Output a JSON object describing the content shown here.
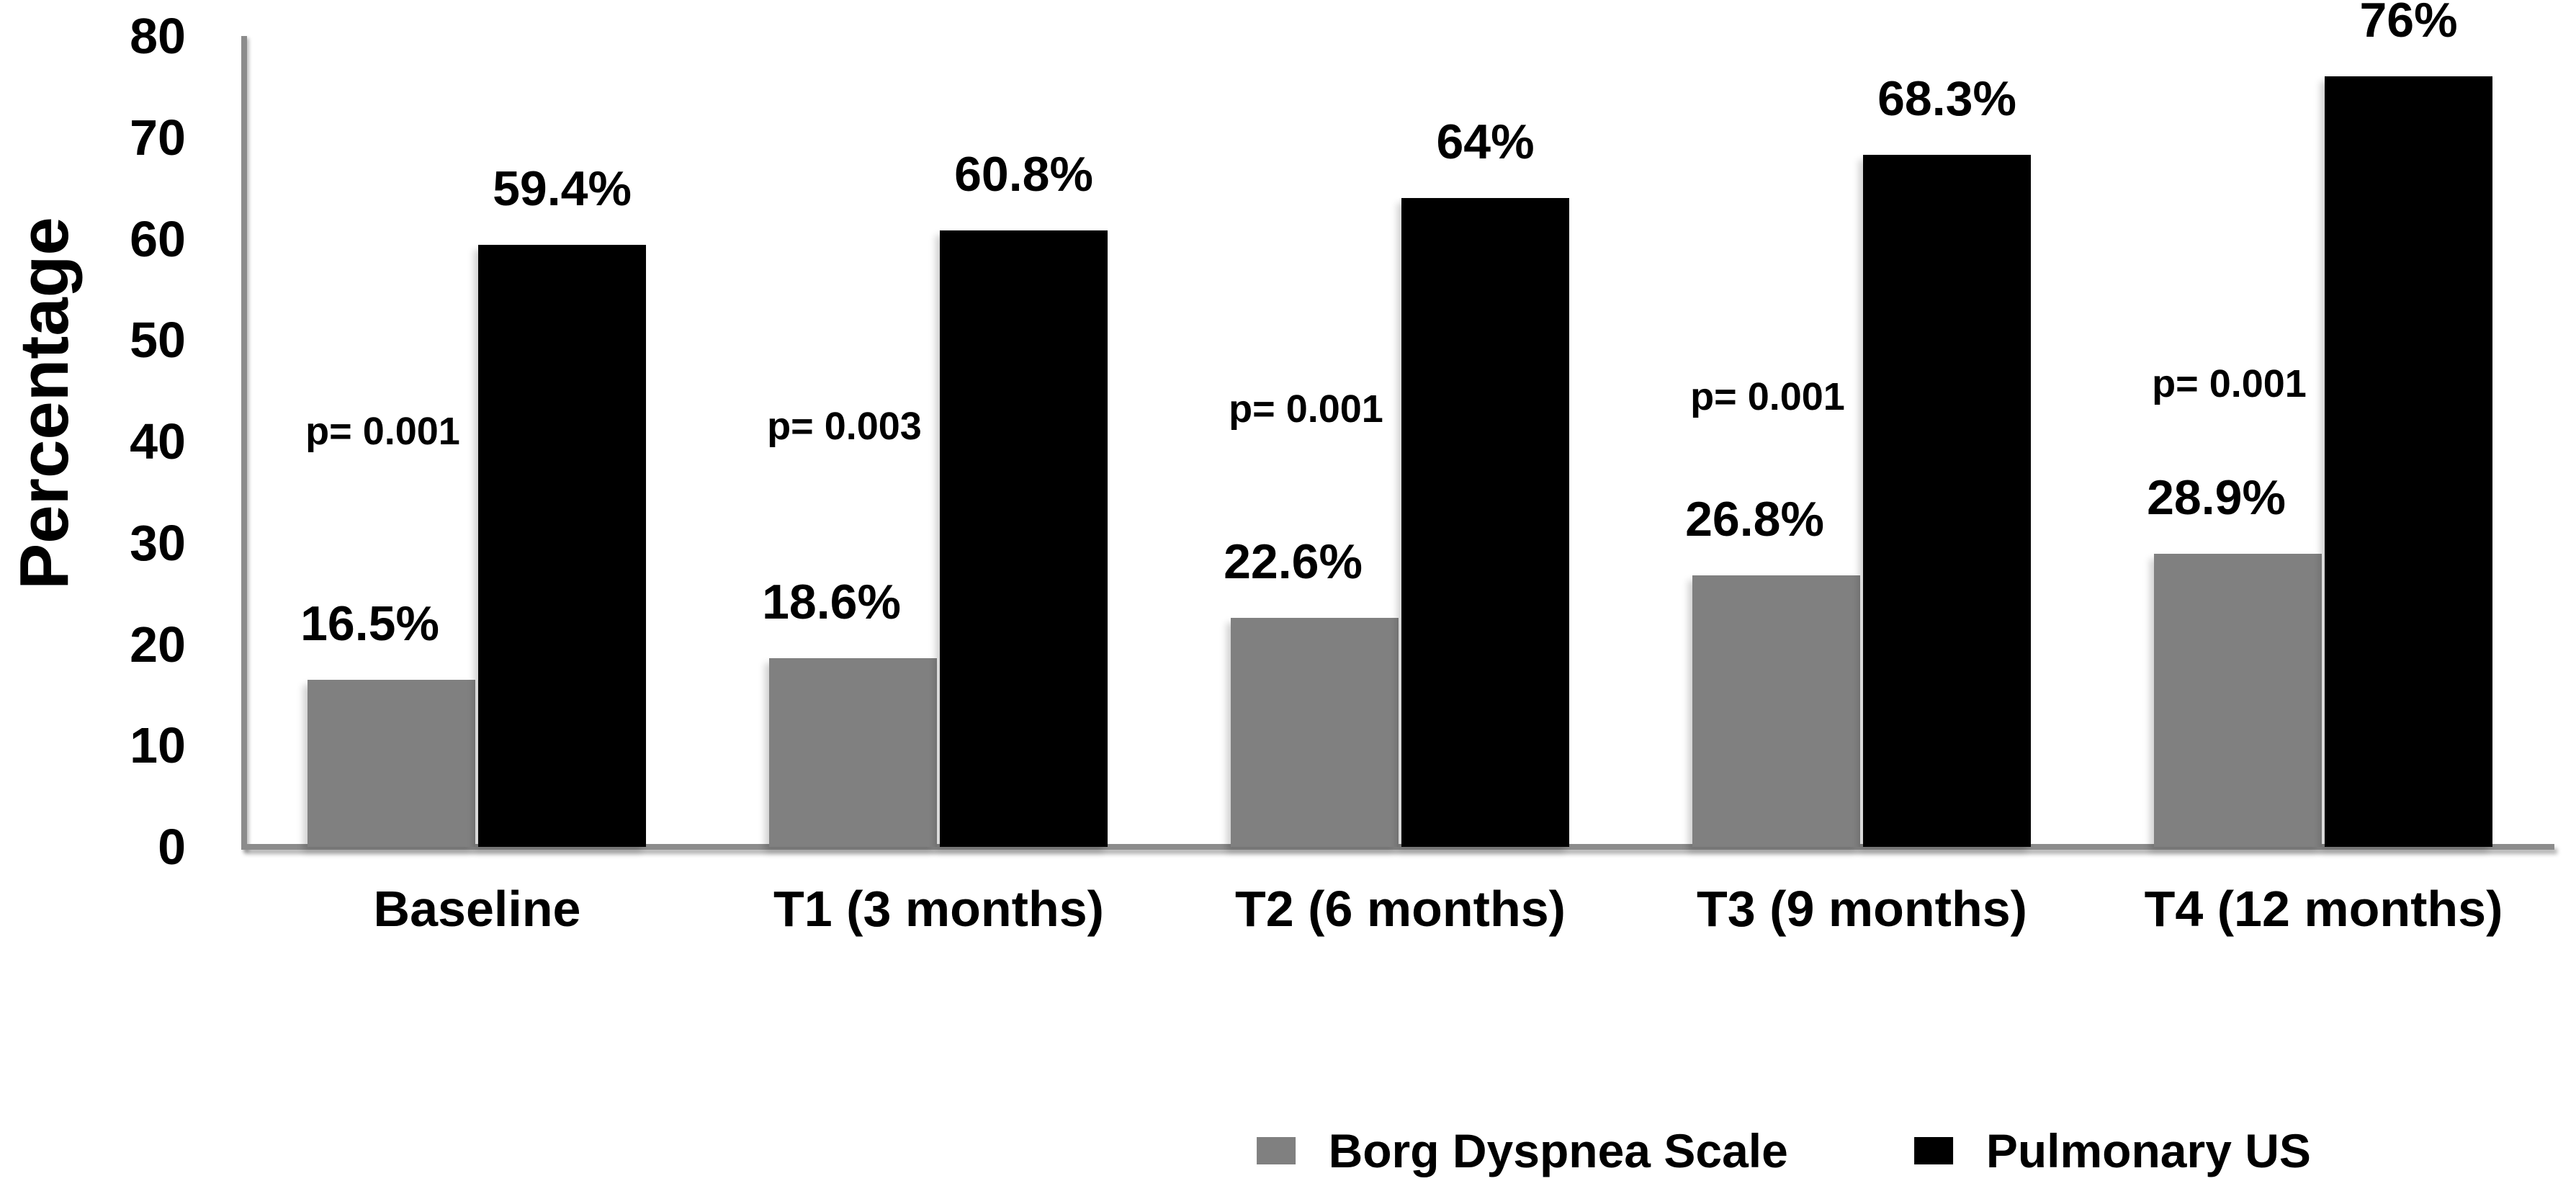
{
  "chart_data": {
    "type": "bar",
    "ylabel": "Percentage",
    "ylim": [
      0,
      80
    ],
    "yticks": [
      0,
      10,
      20,
      30,
      40,
      50,
      60,
      70,
      80
    ],
    "grid": false,
    "legend_position": "bottom",
    "background": "#ffffff",
    "axis_color": "#8c8c8c",
    "text_color": "#000000",
    "categories": [
      "Baseline",
      "T1 (3 months)",
      "T2 (6 months)",
      "T3 (9 months)",
      "T4 (12 months)"
    ],
    "series": [
      {
        "name": "Borg Dyspnea Scale",
        "color": "#808080",
        "values": [
          16.5,
          18.6,
          22.6,
          26.8,
          28.9
        ],
        "labels": [
          "16.5%",
          "18.6%",
          "22.6%",
          "26.8%",
          "28.9%"
        ]
      },
      {
        "name": "Pulmonary  US",
        "color": "#000000",
        "values": [
          59.4,
          60.8,
          64,
          68.3,
          76
        ],
        "labels": [
          "59.4%",
          "60.8%",
          "64%",
          "68.3%",
          "76%"
        ]
      }
    ],
    "annotations": [
      {
        "text": "p= 0.001",
        "group": 0,
        "y_value": 41.0
      },
      {
        "text": "p= 0.003",
        "group": 1,
        "y_value": 41.5
      },
      {
        "text": "p= 0.001",
        "group": 2,
        "y_value": 43.2
      },
      {
        "text": "p= 0.001",
        "group": 3,
        "y_value": 44.4
      },
      {
        "text": "p= 0.001",
        "group": 4,
        "y_value": 45.7
      }
    ]
  }
}
